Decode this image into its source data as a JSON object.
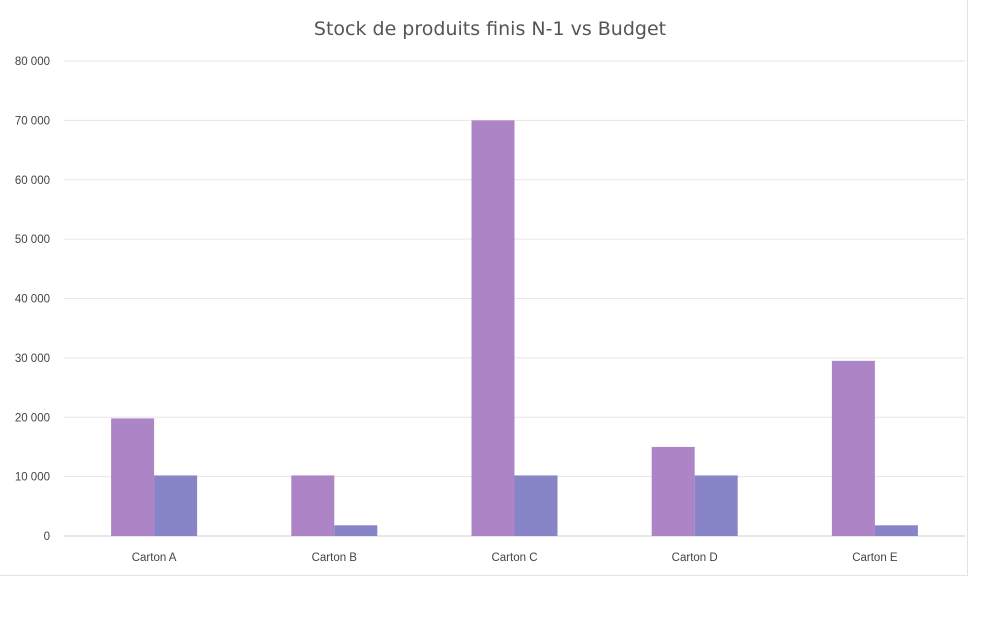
{
  "chart_data": {
    "type": "bar",
    "title": "Stock de produits finis N-1 vs Budget",
    "xlabel": "",
    "ylabel": "",
    "categories": [
      "Carton A",
      "Carton B",
      "Carton C",
      "Carton D",
      "Carton E"
    ],
    "series": [
      {
        "values": [
          19800,
          10200,
          70000,
          15000,
          29500
        ],
        "color": "#ad84c6"
      },
      {
        "values": [
          10200,
          1800,
          10200,
          10200,
          1800
        ],
        "color": "#8784c7"
      }
    ],
    "ylim": [
      0,
      80000
    ],
    "yticks": [
      "0",
      "10 000",
      "20 000",
      "30 000",
      "40 000",
      "50 000",
      "60 000",
      "70 000",
      "80 000"
    ],
    "grid": true,
    "legend": "none",
    "gridline_color": "#e6e6e6",
    "axis_color": "#d0d0d0"
  }
}
